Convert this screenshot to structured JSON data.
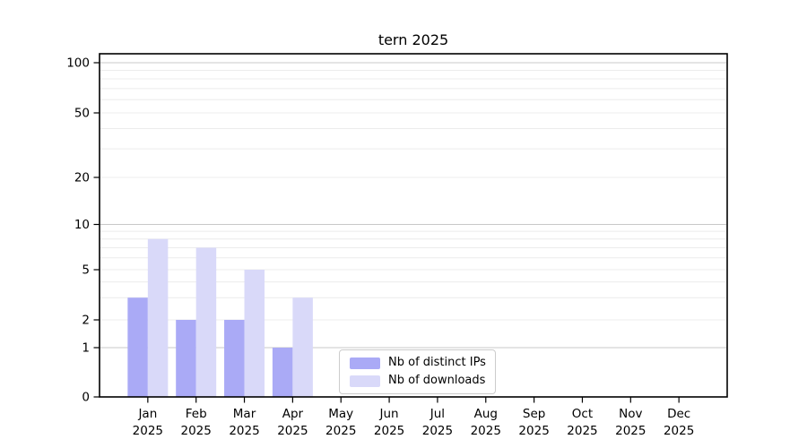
{
  "chart_data": {
    "type": "bar",
    "title": "tern 2025",
    "xlabel": "",
    "ylabel": "",
    "categories": [
      "Jan 2025",
      "Feb 2025",
      "Mar 2025",
      "Apr 2025",
      "May 2025",
      "Jun 2025",
      "Jul 2025",
      "Aug 2025",
      "Sep 2025",
      "Oct 2025",
      "Nov 2025",
      "Dec 2025"
    ],
    "series": [
      {
        "name": "Nb of distinct IPs",
        "color": "#aaaaf6",
        "values": [
          3,
          2,
          2,
          1,
          0,
          0,
          0,
          0,
          0,
          0,
          0,
          0
        ]
      },
      {
        "name": "Nb of downloads",
        "color": "#d9d9f9",
        "values": [
          8,
          7,
          5,
          3,
          0,
          0,
          0,
          0,
          0,
          0,
          0,
          0
        ]
      }
    ],
    "y_axis": {
      "scale": "log",
      "tick_values": [
        0,
        1,
        2,
        5,
        10,
        20,
        50,
        100
      ],
      "major_gridlines": [
        1,
        10,
        100
      ],
      "minor_gridlines": [
        2,
        3,
        4,
        5,
        6,
        7,
        8,
        9,
        20,
        30,
        40,
        50,
        60,
        70,
        80,
        90
      ],
      "ylim": [
        0,
        130
      ]
    },
    "legend_position": "bottom-center",
    "grid": true,
    "colors": {
      "major_grid": "#c8c8c8",
      "minor_grid": "#ececec",
      "axis": "#000000",
      "text": "#000000",
      "legend_border": "#cccccc"
    }
  }
}
